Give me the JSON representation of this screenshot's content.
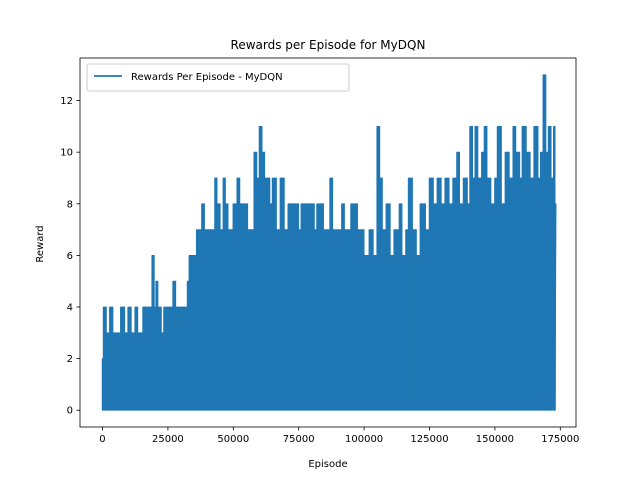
{
  "chart_data": {
    "type": "line",
    "title": "Rewards per Episode for MyDQN",
    "xlabel": "Episode",
    "ylabel": "Reward",
    "xlim": [
      -8600,
      181000
    ],
    "ylim": [
      -0.65,
      13.65
    ],
    "grid": false,
    "legend_position": "top-left",
    "x_ticks": [
      0,
      25000,
      50000,
      75000,
      100000,
      125000,
      150000,
      175000
    ],
    "x_tick_labels": [
      "0",
      "25000",
      "50000",
      "75000",
      "100000",
      "125000",
      "150000",
      "175000"
    ],
    "y_ticks": [
      0,
      2,
      4,
      6,
      8,
      10,
      12
    ],
    "y_tick_labels": [
      "0",
      "2",
      "4",
      "6",
      "8",
      "10",
      "12"
    ],
    "series": [
      {
        "name": "Rewards Per Episode - MyDQN",
        "color": "#1f77b4",
        "min_value": 0,
        "upper_envelope": [
          [
            0,
            2
          ],
          [
            400,
            4
          ],
          [
            1500,
            3
          ],
          [
            2800,
            4
          ],
          [
            4000,
            3
          ],
          [
            7000,
            4
          ],
          [
            8500,
            3
          ],
          [
            9800,
            4
          ],
          [
            11000,
            3
          ],
          [
            12500,
            4
          ],
          [
            13500,
            3
          ],
          [
            15500,
            4
          ],
          [
            18500,
            4
          ],
          [
            19000,
            6
          ],
          [
            19800,
            4
          ],
          [
            20500,
            5
          ],
          [
            21200,
            4
          ],
          [
            22500,
            3
          ],
          [
            23500,
            4
          ],
          [
            26500,
            4
          ],
          [
            27000,
            5
          ],
          [
            28000,
            4
          ],
          [
            32000,
            4
          ],
          [
            32500,
            5
          ],
          [
            33200,
            6
          ],
          [
            35500,
            6
          ],
          [
            36000,
            7
          ],
          [
            38000,
            8
          ],
          [
            39000,
            7
          ],
          [
            42500,
            7
          ],
          [
            43000,
            9
          ],
          [
            43800,
            8
          ],
          [
            45000,
            7
          ],
          [
            46200,
            9
          ],
          [
            47000,
            8
          ],
          [
            48000,
            7
          ],
          [
            50000,
            8
          ],
          [
            51500,
            9
          ],
          [
            52500,
            8
          ],
          [
            55500,
            7
          ],
          [
            58000,
            10
          ],
          [
            59000,
            9
          ],
          [
            60000,
            11
          ],
          [
            61000,
            10
          ],
          [
            62000,
            9
          ],
          [
            64000,
            8
          ],
          [
            65000,
            9
          ],
          [
            66500,
            7
          ],
          [
            68000,
            9
          ],
          [
            69500,
            7
          ],
          [
            71000,
            8
          ],
          [
            74000,
            8
          ],
          [
            75000,
            7
          ],
          [
            76000,
            8
          ],
          [
            80000,
            8
          ],
          [
            81000,
            7
          ],
          [
            82000,
            8
          ],
          [
            84500,
            7
          ],
          [
            87000,
            9
          ],
          [
            88000,
            7
          ],
          [
            90000,
            7
          ],
          [
            91500,
            8
          ],
          [
            92500,
            7
          ],
          [
            95000,
            8
          ],
          [
            97500,
            7
          ],
          [
            100000,
            6
          ],
          [
            102000,
            7
          ],
          [
            103500,
            6
          ],
          [
            105000,
            11
          ],
          [
            106000,
            9
          ],
          [
            107000,
            7
          ],
          [
            108500,
            8
          ],
          [
            110000,
            6
          ],
          [
            111500,
            7
          ],
          [
            113500,
            8
          ],
          [
            114500,
            6
          ],
          [
            116000,
            7
          ],
          [
            117000,
            9
          ],
          [
            118500,
            7
          ],
          [
            120000,
            6
          ],
          [
            121500,
            8
          ],
          [
            123500,
            7
          ],
          [
            125000,
            9
          ],
          [
            126500,
            8
          ],
          [
            128000,
            9
          ],
          [
            129500,
            8
          ],
          [
            131000,
            9
          ],
          [
            132500,
            8
          ],
          [
            134000,
            9
          ],
          [
            135500,
            10
          ],
          [
            136500,
            8
          ],
          [
            138000,
            9
          ],
          [
            139500,
            8
          ],
          [
            140500,
            11
          ],
          [
            141500,
            9
          ],
          [
            142500,
            11
          ],
          [
            143500,
            9
          ],
          [
            145000,
            10
          ],
          [
            146000,
            11
          ],
          [
            147000,
            9
          ],
          [
            148500,
            8
          ],
          [
            150000,
            9
          ],
          [
            151000,
            11
          ],
          [
            152500,
            8
          ],
          [
            154000,
            10
          ],
          [
            155500,
            9
          ],
          [
            157000,
            11
          ],
          [
            158000,
            10
          ],
          [
            159500,
            9
          ],
          [
            160500,
            11
          ],
          [
            162000,
            10
          ],
          [
            163500,
            9
          ],
          [
            165000,
            11
          ],
          [
            166500,
            9
          ],
          [
            167500,
            10
          ],
          [
            168500,
            13
          ],
          [
            169500,
            10
          ],
          [
            170500,
            11
          ],
          [
            171500,
            9
          ],
          [
            172500,
            11
          ],
          [
            173000,
            8
          ]
        ]
      }
    ]
  }
}
